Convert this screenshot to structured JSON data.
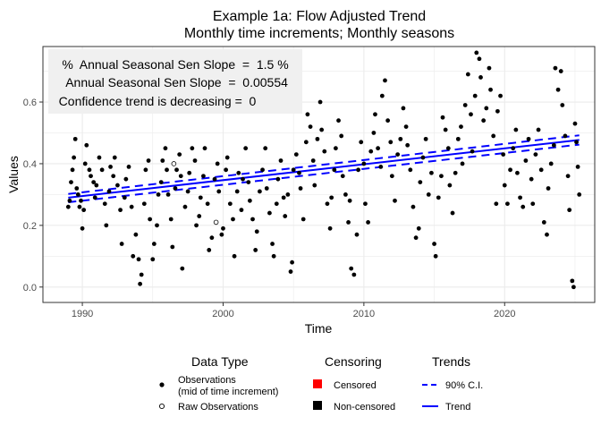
{
  "chart_data": {
    "type": "scatter",
    "title": "Example 1a: Flow Adjusted Trend",
    "subtitle": "Monthly time increments; Monthly seasons",
    "xlabel": "Time",
    "ylabel": "Values",
    "xlim": [
      1987.2,
      2026.4
    ],
    "ylim": [
      -0.05,
      0.78
    ],
    "x_ticks": [
      1990,
      2000,
      2010,
      2020
    ],
    "y_ticks": [
      0.0,
      0.2,
      0.4,
      0.6
    ],
    "x_tick_labels": [
      "1990",
      "2000",
      "2010",
      "2020"
    ],
    "y_tick_labels": [
      "0.0",
      "0.2",
      "0.4",
      "0.6"
    ],
    "grid": true,
    "annotations": [
      "%  Annual Seasonal Sen Slope  =  1.5 %",
      " Annual Seasonal Sen Slope  =  0.00554",
      "Confidence trend is decreasing =  0"
    ],
    "trend_line": {
      "x": [
        1989.0,
        2025.3
      ],
      "y": [
        0.29,
        0.477
      ],
      "color": "#0000ff"
    },
    "ci_lower": {
      "x": [
        1989.0,
        2025.3
      ],
      "y": [
        0.275,
        0.462
      ],
      "color": "#0000ff"
    },
    "ci_upper": {
      "x": [
        1989.0,
        2025.3
      ],
      "y": [
        0.302,
        0.492
      ],
      "color": "#0000ff"
    },
    "raw_observations": [
      {
        "x": 1996.5,
        "y": 0.4
      },
      {
        "x": 1999.5,
        "y": 0.21
      }
    ],
    "observations": [
      {
        "x": 1989.0,
        "y": 0.26
      },
      {
        "x": 1989.1,
        "y": 0.28
      },
      {
        "x": 1989.2,
        "y": 0.34
      },
      {
        "x": 1989.3,
        "y": 0.38
      },
      {
        "x": 1989.4,
        "y": 0.42
      },
      {
        "x": 1989.5,
        "y": 0.48
      },
      {
        "x": 1989.6,
        "y": 0.32
      },
      {
        "x": 1989.7,
        "y": 0.3
      },
      {
        "x": 1989.8,
        "y": 0.26
      },
      {
        "x": 1989.9,
        "y": 0.28
      },
      {
        "x": 1990.0,
        "y": 0.19
      },
      {
        "x": 1990.1,
        "y": 0.25
      },
      {
        "x": 1990.2,
        "y": 0.4
      },
      {
        "x": 1990.3,
        "y": 0.46
      },
      {
        "x": 1990.5,
        "y": 0.38
      },
      {
        "x": 1990.6,
        "y": 0.36
      },
      {
        "x": 1990.8,
        "y": 0.34
      },
      {
        "x": 1990.9,
        "y": 0.29
      },
      {
        "x": 1991.0,
        "y": 0.33
      },
      {
        "x": 1991.2,
        "y": 0.42
      },
      {
        "x": 1991.4,
        "y": 0.38
      },
      {
        "x": 1991.6,
        "y": 0.27
      },
      {
        "x": 1991.7,
        "y": 0.2
      },
      {
        "x": 1991.9,
        "y": 0.31
      },
      {
        "x": 1992.0,
        "y": 0.39
      },
      {
        "x": 1992.2,
        "y": 0.36
      },
      {
        "x": 1992.3,
        "y": 0.42
      },
      {
        "x": 1992.5,
        "y": 0.33
      },
      {
        "x": 1992.7,
        "y": 0.25
      },
      {
        "x": 1992.8,
        "y": 0.14
      },
      {
        "x": 1993.0,
        "y": 0.29
      },
      {
        "x": 1993.1,
        "y": 0.35
      },
      {
        "x": 1993.3,
        "y": 0.39
      },
      {
        "x": 1993.5,
        "y": 0.26
      },
      {
        "x": 1993.6,
        "y": 0.1
      },
      {
        "x": 1993.8,
        "y": 0.17
      },
      {
        "x": 1994.0,
        "y": 0.09
      },
      {
        "x": 1994.1,
        "y": 0.01
      },
      {
        "x": 1994.2,
        "y": 0.04
      },
      {
        "x": 1994.4,
        "y": 0.27
      },
      {
        "x": 1994.5,
        "y": 0.38
      },
      {
        "x": 1994.7,
        "y": 0.41
      },
      {
        "x": 1994.8,
        "y": 0.22
      },
      {
        "x": 1995.0,
        "y": 0.09
      },
      {
        "x": 1995.1,
        "y": 0.14
      },
      {
        "x": 1995.3,
        "y": 0.2
      },
      {
        "x": 1995.4,
        "y": 0.3
      },
      {
        "x": 1995.6,
        "y": 0.34
      },
      {
        "x": 1995.7,
        "y": 0.41
      },
      {
        "x": 1995.9,
        "y": 0.45
      },
      {
        "x": 1996.0,
        "y": 0.38
      },
      {
        "x": 1996.1,
        "y": 0.3
      },
      {
        "x": 1996.3,
        "y": 0.22
      },
      {
        "x": 1996.4,
        "y": 0.13
      },
      {
        "x": 1996.6,
        "y": 0.32
      },
      {
        "x": 1996.7,
        "y": 0.38
      },
      {
        "x": 1996.9,
        "y": 0.43
      },
      {
        "x": 1997.0,
        "y": 0.36
      },
      {
        "x": 1997.1,
        "y": 0.06
      },
      {
        "x": 1997.3,
        "y": 0.26
      },
      {
        "x": 1997.5,
        "y": 0.31
      },
      {
        "x": 1997.6,
        "y": 0.37
      },
      {
        "x": 1997.8,
        "y": 0.45
      },
      {
        "x": 1998.0,
        "y": 0.41
      },
      {
        "x": 1998.1,
        "y": 0.2
      },
      {
        "x": 1998.3,
        "y": 0.23
      },
      {
        "x": 1998.4,
        "y": 0.29
      },
      {
        "x": 1998.6,
        "y": 0.36
      },
      {
        "x": 1998.7,
        "y": 0.45
      },
      {
        "x": 1998.9,
        "y": 0.27
      },
      {
        "x": 1999.0,
        "y": 0.12
      },
      {
        "x": 1999.2,
        "y": 0.16
      },
      {
        "x": 1999.4,
        "y": 0.35
      },
      {
        "x": 1999.6,
        "y": 0.4
      },
      {
        "x": 1999.7,
        "y": 0.31
      },
      {
        "x": 1999.9,
        "y": 0.17
      },
      {
        "x": 2000.0,
        "y": 0.19
      },
      {
        "x": 2000.2,
        "y": 0.38
      },
      {
        "x": 2000.3,
        "y": 0.42
      },
      {
        "x": 2000.5,
        "y": 0.27
      },
      {
        "x": 2000.7,
        "y": 0.22
      },
      {
        "x": 2000.8,
        "y": 0.1
      },
      {
        "x": 2001.0,
        "y": 0.31
      },
      {
        "x": 2001.1,
        "y": 0.37
      },
      {
        "x": 2001.3,
        "y": 0.25
      },
      {
        "x": 2001.4,
        "y": 0.35
      },
      {
        "x": 2001.6,
        "y": 0.45
      },
      {
        "x": 2001.8,
        "y": 0.34
      },
      {
        "x": 2001.9,
        "y": 0.28
      },
      {
        "x": 2002.1,
        "y": 0.22
      },
      {
        "x": 2002.3,
        "y": 0.12
      },
      {
        "x": 2002.4,
        "y": 0.18
      },
      {
        "x": 2002.6,
        "y": 0.31
      },
      {
        "x": 2002.8,
        "y": 0.38
      },
      {
        "x": 2003.0,
        "y": 0.45
      },
      {
        "x": 2003.1,
        "y": 0.32
      },
      {
        "x": 2003.3,
        "y": 0.24
      },
      {
        "x": 2003.5,
        "y": 0.14
      },
      {
        "x": 2003.6,
        "y": 0.1
      },
      {
        "x": 2003.8,
        "y": 0.27
      },
      {
        "x": 2003.9,
        "y": 0.35
      },
      {
        "x": 2004.1,
        "y": 0.41
      },
      {
        "x": 2004.3,
        "y": 0.29
      },
      {
        "x": 2004.4,
        "y": 0.23
      },
      {
        "x": 2004.6,
        "y": 0.3
      },
      {
        "x": 2004.8,
        "y": 0.05
      },
      {
        "x": 2004.9,
        "y": 0.08
      },
      {
        "x": 2005.0,
        "y": 0.38
      },
      {
        "x": 2005.2,
        "y": 0.43
      },
      {
        "x": 2005.4,
        "y": 0.37
      },
      {
        "x": 2005.5,
        "y": 0.32
      },
      {
        "x": 2005.7,
        "y": 0.22
      },
      {
        "x": 2005.9,
        "y": 0.47
      },
      {
        "x": 2006.0,
        "y": 0.56
      },
      {
        "x": 2006.2,
        "y": 0.52
      },
      {
        "x": 2006.4,
        "y": 0.41
      },
      {
        "x": 2006.5,
        "y": 0.33
      },
      {
        "x": 2006.7,
        "y": 0.48
      },
      {
        "x": 2006.9,
        "y": 0.6
      },
      {
        "x": 2007.0,
        "y": 0.51
      },
      {
        "x": 2007.2,
        "y": 0.44
      },
      {
        "x": 2007.4,
        "y": 0.27
      },
      {
        "x": 2007.6,
        "y": 0.19
      },
      {
        "x": 2007.7,
        "y": 0.29
      },
      {
        "x": 2007.9,
        "y": 0.38
      },
      {
        "x": 2008.0,
        "y": 0.45
      },
      {
        "x": 2008.2,
        "y": 0.54
      },
      {
        "x": 2008.4,
        "y": 0.49
      },
      {
        "x": 2008.5,
        "y": 0.36
      },
      {
        "x": 2008.7,
        "y": 0.3
      },
      {
        "x": 2008.9,
        "y": 0.21
      },
      {
        "x": 2009.0,
        "y": 0.28
      },
      {
        "x": 2009.1,
        "y": 0.06
      },
      {
        "x": 2009.3,
        "y": 0.04
      },
      {
        "x": 2009.5,
        "y": 0.17
      },
      {
        "x": 2009.6,
        "y": 0.38
      },
      {
        "x": 2009.8,
        "y": 0.47
      },
      {
        "x": 2010.0,
        "y": 0.4
      },
      {
        "x": 2010.1,
        "y": 0.27
      },
      {
        "x": 2010.3,
        "y": 0.21
      },
      {
        "x": 2010.5,
        "y": 0.44
      },
      {
        "x": 2010.7,
        "y": 0.5
      },
      {
        "x": 2010.8,
        "y": 0.56
      },
      {
        "x": 2011.0,
        "y": 0.45
      },
      {
        "x": 2011.2,
        "y": 0.39
      },
      {
        "x": 2011.3,
        "y": 0.62
      },
      {
        "x": 2011.5,
        "y": 0.67
      },
      {
        "x": 2011.7,
        "y": 0.54
      },
      {
        "x": 2011.9,
        "y": 0.47
      },
      {
        "x": 2012.0,
        "y": 0.36
      },
      {
        "x": 2012.2,
        "y": 0.28
      },
      {
        "x": 2012.4,
        "y": 0.43
      },
      {
        "x": 2012.6,
        "y": 0.48
      },
      {
        "x": 2012.8,
        "y": 0.58
      },
      {
        "x": 2013.0,
        "y": 0.52
      },
      {
        "x": 2013.1,
        "y": 0.46
      },
      {
        "x": 2013.3,
        "y": 0.38
      },
      {
        "x": 2013.5,
        "y": 0.26
      },
      {
        "x": 2013.7,
        "y": 0.16
      },
      {
        "x": 2013.9,
        "y": 0.19
      },
      {
        "x": 2014.0,
        "y": 0.34
      },
      {
        "x": 2014.2,
        "y": 0.42
      },
      {
        "x": 2014.4,
        "y": 0.48
      },
      {
        "x": 2014.6,
        "y": 0.3
      },
      {
        "x": 2014.8,
        "y": 0.37
      },
      {
        "x": 2015.0,
        "y": 0.14
      },
      {
        "x": 2015.1,
        "y": 0.1
      },
      {
        "x": 2015.3,
        "y": 0.29
      },
      {
        "x": 2015.5,
        "y": 0.36
      },
      {
        "x": 2015.6,
        "y": 0.55
      },
      {
        "x": 2015.8,
        "y": 0.51
      },
      {
        "x": 2016.0,
        "y": 0.45
      },
      {
        "x": 2016.1,
        "y": 0.33
      },
      {
        "x": 2016.3,
        "y": 0.24
      },
      {
        "x": 2016.5,
        "y": 0.37
      },
      {
        "x": 2016.7,
        "y": 0.48
      },
      {
        "x": 2016.9,
        "y": 0.52
      },
      {
        "x": 2017.0,
        "y": 0.4
      },
      {
        "x": 2017.2,
        "y": 0.59
      },
      {
        "x": 2017.4,
        "y": 0.69
      },
      {
        "x": 2017.6,
        "y": 0.56
      },
      {
        "x": 2017.7,
        "y": 0.44
      },
      {
        "x": 2017.9,
        "y": 0.62
      },
      {
        "x": 2018.0,
        "y": 0.76
      },
      {
        "x": 2018.2,
        "y": 0.74
      },
      {
        "x": 2018.3,
        "y": 0.68
      },
      {
        "x": 2018.5,
        "y": 0.54
      },
      {
        "x": 2018.7,
        "y": 0.58
      },
      {
        "x": 2018.9,
        "y": 0.71
      },
      {
        "x": 2019.0,
        "y": 0.64
      },
      {
        "x": 2019.2,
        "y": 0.49
      },
      {
        "x": 2019.4,
        "y": 0.27
      },
      {
        "x": 2019.5,
        "y": 0.57
      },
      {
        "x": 2019.7,
        "y": 0.62
      },
      {
        "x": 2019.9,
        "y": 0.43
      },
      {
        "x": 2020.0,
        "y": 0.33
      },
      {
        "x": 2020.2,
        "y": 0.27
      },
      {
        "x": 2020.4,
        "y": 0.38
      },
      {
        "x": 2020.6,
        "y": 0.45
      },
      {
        "x": 2020.8,
        "y": 0.51
      },
      {
        "x": 2020.9,
        "y": 0.37
      },
      {
        "x": 2021.1,
        "y": 0.29
      },
      {
        "x": 2021.3,
        "y": 0.26
      },
      {
        "x": 2021.5,
        "y": 0.41
      },
      {
        "x": 2021.7,
        "y": 0.48
      },
      {
        "x": 2021.9,
        "y": 0.35
      },
      {
        "x": 2022.0,
        "y": 0.27
      },
      {
        "x": 2022.2,
        "y": 0.43
      },
      {
        "x": 2022.4,
        "y": 0.51
      },
      {
        "x": 2022.6,
        "y": 0.38
      },
      {
        "x": 2022.8,
        "y": 0.21
      },
      {
        "x": 2023.0,
        "y": 0.17
      },
      {
        "x": 2023.1,
        "y": 0.32
      },
      {
        "x": 2023.3,
        "y": 0.4
      },
      {
        "x": 2023.5,
        "y": 0.46
      },
      {
        "x": 2023.6,
        "y": 0.71
      },
      {
        "x": 2023.8,
        "y": 0.64
      },
      {
        "x": 2024.0,
        "y": 0.7
      },
      {
        "x": 2024.1,
        "y": 0.59
      },
      {
        "x": 2024.3,
        "y": 0.49
      },
      {
        "x": 2024.5,
        "y": 0.36
      },
      {
        "x": 2024.6,
        "y": 0.25
      },
      {
        "x": 2024.8,
        "y": 0.02
      },
      {
        "x": 2024.9,
        "y": 0.0
      },
      {
        "x": 2025.0,
        "y": 0.53
      },
      {
        "x": 2025.1,
        "y": 0.47
      },
      {
        "x": 2025.2,
        "y": 0.39
      },
      {
        "x": 2025.3,
        "y": 0.3
      }
    ],
    "legend": {
      "placement": "bottom",
      "groups": [
        {
          "title": "Data Type",
          "items": [
            {
              "label": "Observations\n(mid of time increment)",
              "symbol": "filled-circle",
              "color": "#000000"
            },
            {
              "label": "Raw Observations",
              "symbol": "open-circle",
              "color": "#000000"
            }
          ]
        },
        {
          "title": "Censoring",
          "items": [
            {
              "label": "Censored",
              "symbol": "square",
              "color": "#ff0000"
            },
            {
              "label": "Non-censored",
              "symbol": "square",
              "color": "#000000"
            }
          ]
        },
        {
          "title": "Trends",
          "items": [
            {
              "label": "90% C.I.",
              "symbol": "dashed-line",
              "color": "#0000ff"
            },
            {
              "label": "Trend",
              "symbol": "solid-line",
              "color": "#0000ff"
            }
          ]
        }
      ]
    },
    "colors": {
      "trend": "#0000ff",
      "points": "#000000",
      "censored": "#ff0000",
      "grid": "#ebebeb",
      "panel_border": "#333333",
      "annotation_box": "#f0f0f0"
    }
  }
}
